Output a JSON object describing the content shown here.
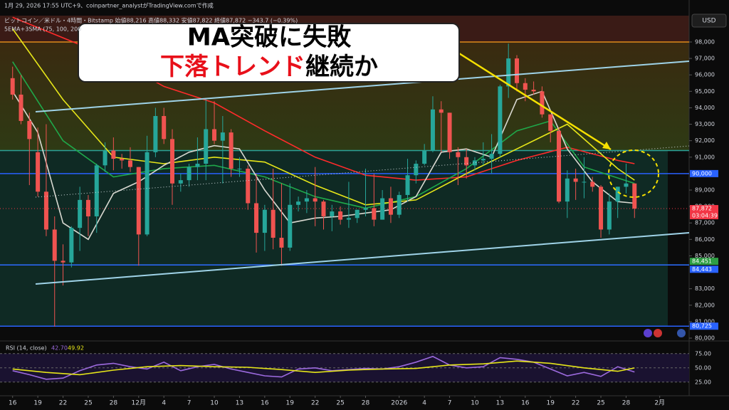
{
  "header": {
    "created": "1月 29, 2026 17:55 UTC+9、coinpartner_analystがTradingView.comで作成",
    "symbol": "ビットコイン／米ドル・4時間・Bitstamp 始値88,216 高値88,332 安値87,822 終値87,872 −343.7 (−0.39%)",
    "indicator": "5EMA+3SMA (75, 100, 200",
    "currency": "USD"
  },
  "banner": {
    "line1": "MA突破に失敗",
    "line2": [
      "下落トレンド",
      "継続か"
    ]
  },
  "chart_data": [
    {
      "type": "candlestick",
      "xlim": [
        -1.5,
        80.5
      ],
      "xticks": [
        {
          "value": 0,
          "label": "16"
        },
        {
          "value": 3,
          "label": "19"
        },
        {
          "value": 6,
          "label": "22"
        },
        {
          "value": 9,
          "label": "25"
        },
        {
          "value": 12,
          "label": "28"
        },
        {
          "value": 15,
          "label": "12月"
        },
        {
          "value": 18,
          "label": "4"
        },
        {
          "value": 21,
          "label": "7"
        },
        {
          "value": 24,
          "label": "10"
        },
        {
          "value": 27,
          "label": "13"
        },
        {
          "value": 30,
          "label": "16"
        },
        {
          "value": 33,
          "label": "19"
        },
        {
          "value": 36,
          "label": "22"
        },
        {
          "value": 39,
          "label": "25"
        },
        {
          "value": 42,
          "label": "28"
        },
        {
          "value": 46,
          "label": "2026"
        },
        {
          "value": 49,
          "label": "4"
        },
        {
          "value": 52,
          "label": "7"
        },
        {
          "value": 55,
          "label": "10"
        },
        {
          "value": 58,
          "label": "13"
        },
        {
          "value": 61,
          "label": "16"
        },
        {
          "value": 64,
          "label": "19"
        },
        {
          "value": 67,
          "label": "22"
        },
        {
          "value": 70,
          "label": "25"
        },
        {
          "value": 73,
          "label": "28"
        },
        {
          "value": 77,
          "label": "2月"
        }
      ],
      "ylim": [
        80000,
        99600
      ],
      "yticks": [
        {
          "value": 98000,
          "label": "98,000"
        },
        {
          "value": 97000,
          "label": "97,000"
        },
        {
          "value": 96000,
          "label": "96,000"
        },
        {
          "value": 95000,
          "label": "95,000"
        },
        {
          "value": 94000,
          "label": "94,000"
        },
        {
          "value": 93000,
          "label": "93,000"
        },
        {
          "value": 92000,
          "label": "92,000"
        },
        {
          "value": 91000,
          "label": "91,000"
        },
        {
          "value": 89000,
          "label": "89,000"
        },
        {
          "value": 88000,
          "label": "88,000"
        },
        {
          "value": 87000,
          "label": "87,000"
        },
        {
          "value": 86000,
          "label": "86,000"
        },
        {
          "value": 85000,
          "label": "85,000"
        },
        {
          "value": 83000,
          "label": "83,000"
        },
        {
          "value": 82000,
          "label": "82,000"
        },
        {
          "value": 81000,
          "label": "81,000"
        },
        {
          "value": 80000,
          "label": "80,000"
        }
      ],
      "up_color": "#26a69a",
      "down_color": "#ef5350",
      "candles": {
        "open": [
          95800,
          94800,
          93200,
          91300,
          88900,
          86600,
          84700,
          84600,
          86700,
          88400,
          87400,
          90500,
          91400,
          90900,
          90800,
          90400,
          86300,
          91300,
          93500,
          92100,
          89400,
          89600,
          90400,
          90600,
          92700,
          92000,
          92500,
          90300,
          90300,
          88200,
          86400,
          87800,
          86100,
          85500,
          88100,
          88300,
          88500,
          88300,
          87400,
          87700,
          87200,
          87300,
          87800,
          87900,
          87200,
          88500,
          87500,
          88700,
          89900,
          90600,
          91400,
          93900,
          93700,
          91300,
          91000,
          90500,
          90800,
          90900,
          91200,
          95300,
          97000,
          95500,
          95100,
          95000,
          93600,
          92600,
          88300,
          89700,
          89500,
          89500,
          89200,
          86600,
          88300,
          89200,
          89400
        ],
        "high": [
          96500,
          96000,
          93700,
          92800,
          93000,
          87400,
          85700,
          86800,
          89200,
          88700,
          90600,
          91900,
          92200,
          91200,
          91600,
          90400,
          92300,
          94000,
          94000,
          92700,
          90000,
          90600,
          92200,
          94600,
          94400,
          93500,
          92700,
          91000,
          90500,
          90000,
          88100,
          90300,
          89400,
          89400,
          88600,
          89000,
          90400,
          88400,
          88100,
          88000,
          89500,
          87800,
          90300,
          90000,
          89000,
          89200,
          88900,
          90900,
          90800,
          91800,
          94700,
          94400,
          93700,
          91600,
          91500,
          91000,
          91900,
          92400,
          95400,
          97900,
          97200,
          95800,
          95600,
          95300,
          93600,
          92800,
          90200,
          90300,
          91000,
          89800,
          89300,
          88800,
          89200,
          90600,
          89400
        ],
        "low": [
          94500,
          93000,
          89300,
          88600,
          86200,
          80700,
          83200,
          84300,
          85300,
          86200,
          86400,
          90100,
          90200,
          90300,
          90100,
          84400,
          86200,
          91000,
          91800,
          88100,
          88900,
          89200,
          89600,
          89600,
          91800,
          89400,
          89800,
          89800,
          87800,
          85200,
          85300,
          85400,
          84400,
          85300,
          87700,
          87600,
          86800,
          86600,
          86500,
          86900,
          86700,
          87000,
          87400,
          86800,
          87200,
          87000,
          87300,
          88300,
          89400,
          90500,
          91300,
          91300,
          90900,
          89300,
          89700,
          90200,
          90500,
          90000,
          91000,
          94600,
          95000,
          94400,
          94800,
          93400,
          91900,
          88200,
          87300,
          88400,
          88500,
          88900,
          86100,
          86300,
          87300,
          88800,
          87300
        ],
        "close": [
          94800,
          93200,
          92100,
          88900,
          86600,
          84700,
          84600,
          86700,
          88400,
          87400,
          90500,
          91400,
          90900,
          90800,
          90400,
          86300,
          91300,
          93500,
          92100,
          89400,
          89600,
          90400,
          90600,
          92700,
          92000,
          92500,
          90300,
          90300,
          88200,
          86400,
          87800,
          86100,
          85500,
          88100,
          88300,
          88500,
          88300,
          87400,
          87700,
          87200,
          87300,
          87800,
          87900,
          87200,
          88500,
          87500,
          88700,
          89900,
          90600,
          91400,
          93900,
          93700,
          91300,
          91000,
          90500,
          90800,
          90900,
          91200,
          95300,
          97000,
          95500,
          95100,
          95000,
          93600,
          92600,
          88300,
          89700,
          89500,
          89500,
          89200,
          86600,
          88300,
          89200,
          89400,
          87872
        ]
      },
      "series": [
        {
          "color": "#ff2b2b",
          "x": [
            0,
            12,
            18,
            24,
            30,
            36,
            42,
            48,
            54,
            60,
            66,
            72,
            74
          ],
          "values": [
            99500,
            97000,
            95300,
            94300,
            92600,
            91000,
            89900,
            89600,
            89800,
            90800,
            91600,
            90800,
            90600
          ]
        },
        {
          "color": "#1fa84a",
          "x": [
            0,
            6,
            12,
            18,
            24,
            30,
            36,
            42,
            48,
            54,
            60,
            64,
            68,
            74
          ],
          "values": [
            96800,
            92000,
            89800,
            90300,
            90500,
            89800,
            88600,
            87900,
            88600,
            90300,
            92600,
            93200,
            90400,
            89400
          ]
        },
        {
          "color": "#e6e619",
          "x": [
            0,
            6,
            12,
            18,
            24,
            30,
            36,
            42,
            48,
            54,
            60,
            66,
            72,
            74
          ],
          "values": [
            98800,
            94500,
            91000,
            90600,
            91000,
            90700,
            89300,
            88100,
            88400,
            90000,
            91500,
            93000,
            90300,
            89600
          ]
        },
        {
          "color": "#d8d8d0",
          "x": [
            0,
            3,
            6,
            9,
            12,
            15,
            18,
            21,
            24,
            27,
            30,
            33,
            36,
            39,
            42,
            45,
            48,
            51,
            54,
            57,
            60,
            63,
            66,
            69,
            72,
            74
          ],
          "values": [
            95000,
            92500,
            87000,
            86000,
            88800,
            89500,
            90500,
            91300,
            91700,
            91500,
            89000,
            87000,
            87300,
            87400,
            87600,
            87800,
            88600,
            91300,
            91500,
            91000,
            94500,
            95000,
            91500,
            89500,
            88300,
            88200
          ]
        }
      ],
      "levels": [
        {
          "value": 98000,
          "color": "#e08a1a"
        },
        {
          "value": 91400,
          "color": "#2aa198"
        },
        {
          "value": 90000,
          "label": "90,000",
          "color": "#2962ff"
        },
        {
          "value": 87872,
          "label": "87,872",
          "sub": "03:04:39",
          "color": "#f23645",
          "dotted": true
        },
        {
          "value": 84451,
          "label": "84,451",
          "color": "#2e9e44"
        },
        {
          "value": 84443,
          "label": "84,443",
          "color": "#2962ff"
        },
        {
          "value": 80725,
          "label": "80,725",
          "color": "#2962ff"
        }
      ]
    },
    {
      "type": "line",
      "title": "RSI (14, close)",
      "header_values": [
        "42.70",
        "49.92"
      ],
      "ylim": [
        11,
        96
      ],
      "yticks": [
        {
          "value": 75,
          "label": "75.00"
        },
        {
          "value": 50,
          "label": "50.00"
        },
        {
          "value": 25,
          "label": "25.00"
        }
      ],
      "series": [
        {
          "color": "#9c6ade",
          "x": [
            0,
            2,
            4,
            6,
            8,
            10,
            12,
            14,
            16,
            18,
            20,
            22,
            24,
            26,
            28,
            30,
            32,
            34,
            36,
            38,
            40,
            42,
            44,
            46,
            48,
            50,
            52,
            54,
            56,
            58,
            60,
            62,
            64,
            66,
            68,
            70,
            72,
            74
          ],
          "values": [
            45,
            38,
            30,
            32,
            45,
            55,
            58,
            52,
            48,
            60,
            45,
            52,
            56,
            48,
            42,
            36,
            34,
            48,
            50,
            45,
            47,
            49,
            48,
            52,
            60,
            70,
            55,
            50,
            52,
            68,
            65,
            60,
            48,
            36,
            42,
            35,
            52,
            42.7
          ]
        },
        {
          "color": "#e6e619",
          "x": [
            0,
            4,
            8,
            12,
            16,
            20,
            24,
            28,
            32,
            36,
            40,
            44,
            48,
            52,
            56,
            60,
            64,
            68,
            72,
            74
          ],
          "values": [
            48,
            42,
            38,
            46,
            52,
            54,
            52,
            51,
            47,
            42,
            46,
            48,
            49,
            55,
            57,
            62,
            58,
            50,
            44,
            49.92
          ]
        }
      ]
    }
  ]
}
